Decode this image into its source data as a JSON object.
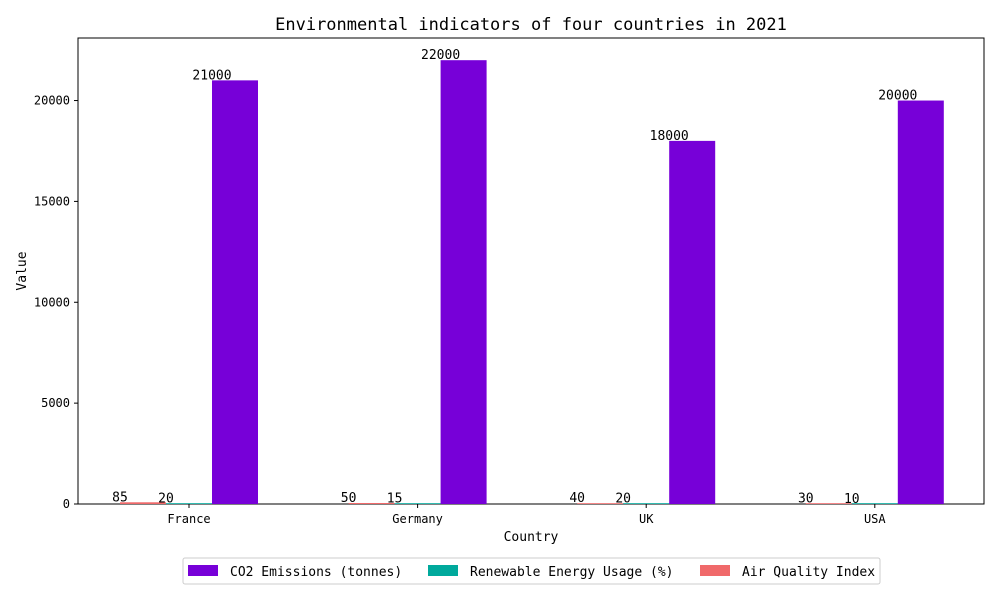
{
  "chart_data": {
    "type": "bar",
    "title": "Environmental indicators of four countries in 2021",
    "xlabel": "Country",
    "ylabel": "Value",
    "categories": [
      "France",
      "Germany",
      "UK",
      "USA"
    ],
    "series": [
      {
        "name": "Air Quality Index",
        "values": [
          85,
          50,
          40,
          30
        ],
        "color": "#f0696a"
      },
      {
        "name": "Renewable Energy Usage (%)",
        "values": [
          20,
          15,
          20,
          10
        ],
        "color": "#00a99c"
      },
      {
        "name": "CO2 Emissions (tonnes)",
        "values": [
          21000,
          22000,
          18000,
          20000
        ],
        "color": "#7700d8"
      }
    ],
    "legend_order": [
      2,
      1,
      0
    ],
    "ylim": [
      0,
      23100
    ],
    "yticks": [
      0,
      5000,
      10000,
      15000,
      20000
    ],
    "legend_position": "bottom-center",
    "grid": false
  }
}
